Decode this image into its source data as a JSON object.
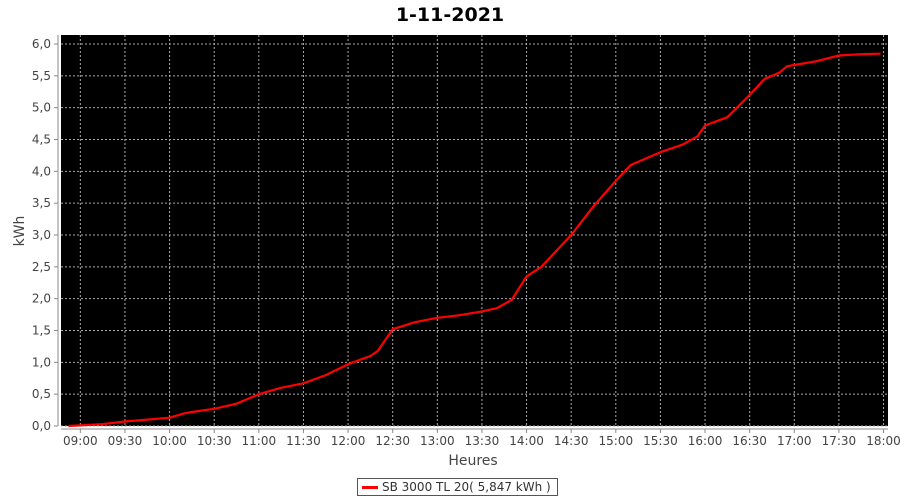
{
  "chart_data": {
    "type": "line",
    "title": "1-11-2021",
    "xlabel": "Heures",
    "ylabel": "kWh",
    "xlim": [
      "08:47",
      "18:03"
    ],
    "ylim": [
      0,
      6.15
    ],
    "xticks": [
      "09:00",
      "09:30",
      "10:00",
      "10:30",
      "11:00",
      "11:30",
      "12:00",
      "12:30",
      "13:00",
      "13:30",
      "14:00",
      "14:30",
      "15:00",
      "15:30",
      "16:00",
      "16:30",
      "17:00",
      "17:30",
      "18:00"
    ],
    "yticks": [
      "0,0",
      "0,5",
      "1,0",
      "1,5",
      "2,0",
      "2,5",
      "3,0",
      "3,5",
      "4,0",
      "4,5",
      "5,0",
      "5,5",
      "6,0"
    ],
    "grid": true,
    "background": "#000000",
    "legend_position": "bottom",
    "series": [
      {
        "name": "SB 3000 TL 20( 5,847 kWh )",
        "color": "#ff0000",
        "x": [
          "08:52",
          "09:00",
          "09:15",
          "09:30",
          "09:45",
          "10:00",
          "10:10",
          "10:15",
          "10:30",
          "10:45",
          "10:55",
          "11:00",
          "11:15",
          "11:30",
          "11:45",
          "12:00",
          "12:15",
          "12:20",
          "12:30",
          "12:45",
          "13:00",
          "13:15",
          "13:30",
          "13:40",
          "13:50",
          "14:00",
          "14:10",
          "14:20",
          "14:30",
          "14:45",
          "15:00",
          "15:10",
          "15:20",
          "15:30",
          "15:45",
          "15:55",
          "16:00",
          "16:15",
          "16:30",
          "16:40",
          "16:50",
          "16:55",
          "17:00",
          "17:15",
          "17:30",
          "17:45",
          "17:58"
        ],
        "y": [
          0.0,
          0.01,
          0.03,
          0.07,
          0.1,
          0.13,
          0.2,
          0.22,
          0.27,
          0.35,
          0.45,
          0.5,
          0.6,
          0.67,
          0.8,
          0.97,
          1.1,
          1.18,
          1.52,
          1.63,
          1.7,
          1.74,
          1.8,
          1.85,
          1.98,
          2.35,
          2.5,
          2.75,
          3.0,
          3.45,
          3.85,
          4.1,
          4.2,
          4.3,
          4.42,
          4.55,
          4.72,
          4.85,
          5.2,
          5.45,
          5.55,
          5.65,
          5.67,
          5.73,
          5.82,
          5.84,
          5.847
        ]
      }
    ]
  }
}
